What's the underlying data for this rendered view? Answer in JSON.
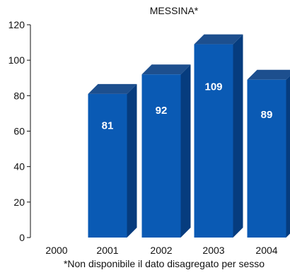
{
  "chart_data": {
    "type": "bar",
    "title": "MESSINA*",
    "categories": [
      "2000",
      "2001",
      "2002",
      "2003",
      "2004"
    ],
    "values": [
      null,
      81,
      92,
      109,
      89
    ],
    "ylim": [
      0,
      120
    ],
    "yticks": [
      0,
      20,
      40,
      60,
      80,
      100,
      120
    ],
    "xlabel": "",
    "ylabel": "",
    "grid": false,
    "footnote": "*Non disponibile il dato disagregato per sesso",
    "colors": {
      "front": "#0a5ab4",
      "side": "#063c7e",
      "top": "#1d4f8e",
      "label": "#ffffff"
    }
  }
}
